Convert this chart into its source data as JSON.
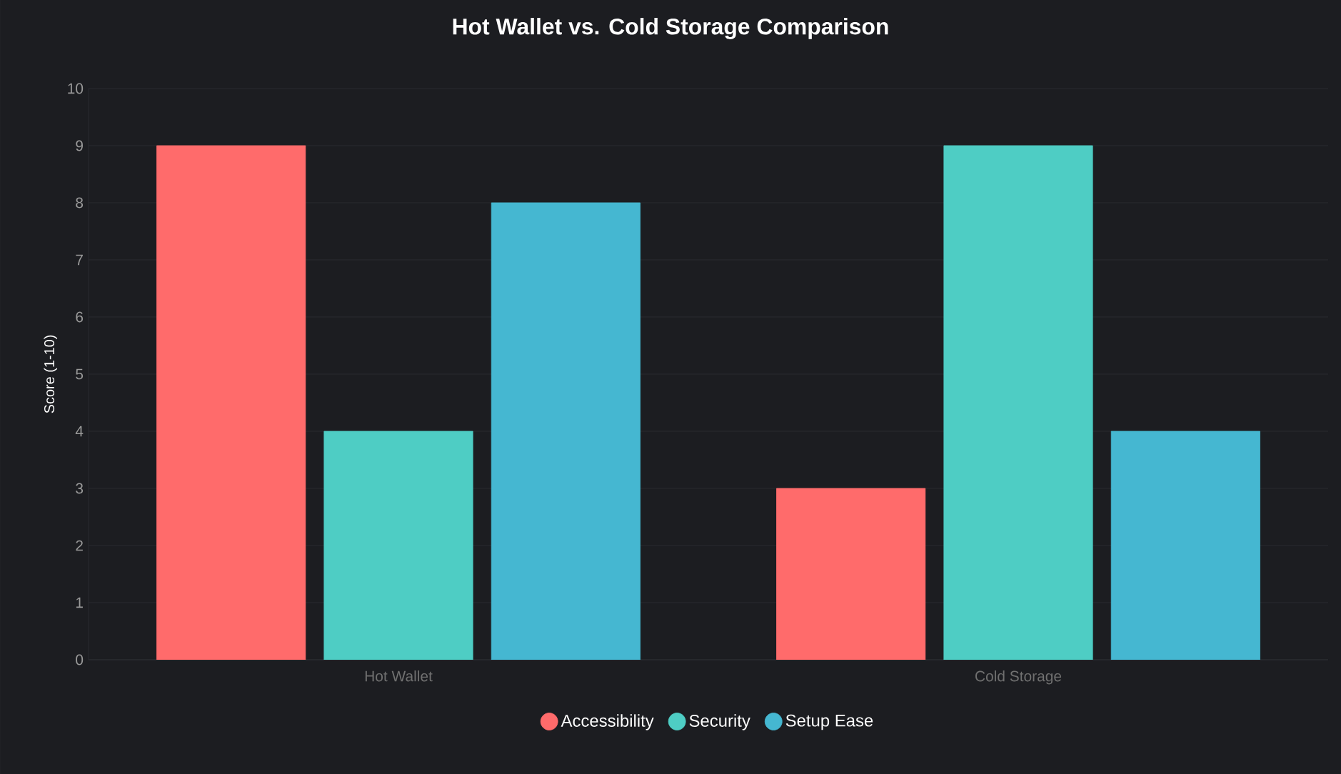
{
  "chart_data": {
    "type": "bar",
    "title": "Hot Wallet vs. Cold Storage Comparison",
    "ylabel": "Score (1-10)",
    "categories": [
      "Hot Wallet",
      "Cold Storage"
    ],
    "series": [
      {
        "name": "Accessibility",
        "color": "#ff6b6b",
        "values": [
          9,
          3
        ]
      },
      {
        "name": "Security",
        "color": "#4ecdc4",
        "values": [
          4,
          9
        ]
      },
      {
        "name": "Setup Ease",
        "color": "#45b7d1",
        "values": [
          8,
          4
        ]
      }
    ],
    "ylim": [
      0,
      10
    ],
    "yticks": [
      0,
      1,
      2,
      3,
      4,
      5,
      6,
      7,
      8,
      9,
      10
    ],
    "grid": "y",
    "legend": "bottom"
  }
}
